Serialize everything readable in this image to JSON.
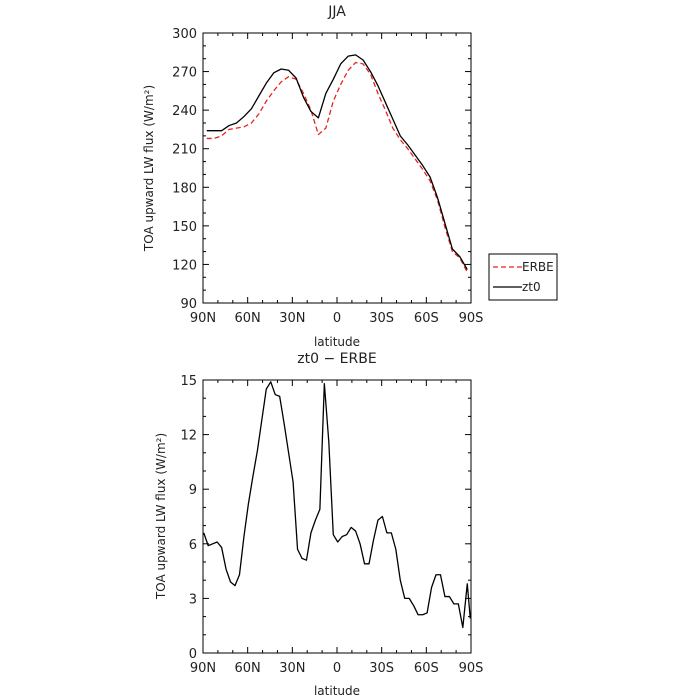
{
  "colors": {
    "erbe": "#e8231e",
    "zt0": "#000000"
  },
  "chart_data": [
    {
      "type": "line",
      "title": "JJA",
      "xlabel": "latitude",
      "ylabel": "TOA upward LW flux (W/m²)",
      "xlim": [
        -90,
        90
      ],
      "ylim": [
        90,
        300
      ],
      "xticks": [
        -90,
        -60,
        -30,
        0,
        30,
        60,
        90
      ],
      "xtick_labels": [
        "90N",
        "60N",
        "30N",
        "0",
        "30S",
        "60S",
        "90S"
      ],
      "yticks": [
        90,
        120,
        150,
        180,
        210,
        240,
        270,
        300
      ],
      "grid": false,
      "legend": "right",
      "series": [
        {
          "name": "ERBE",
          "color": "erbe",
          "dash": "dashed",
          "x": [
            -87.5,
            -82.5,
            -77.5,
            -72.5,
            -67.5,
            -62.5,
            -57.5,
            -52.5,
            -47.5,
            -42.5,
            -37.5,
            -32.5,
            -27.5,
            -22.5,
            -17.5,
            -12.5,
            -7.5,
            -2.5,
            2.5,
            7.5,
            12.5,
            17.5,
            22.5,
            27.5,
            32.5,
            37.5,
            42.5,
            47.5,
            52.5,
            57.5,
            62.5,
            67.5,
            72.5,
            77.5,
            82.5,
            87.5
          ],
          "values": [
            218,
            218,
            220,
            225,
            226,
            227,
            230,
            237,
            247,
            255,
            262,
            266,
            264,
            253,
            240,
            221,
            226,
            247,
            260,
            271,
            277,
            276,
            268,
            253,
            240,
            226,
            217,
            210,
            202,
            194,
            185,
            170,
            149,
            130,
            125,
            114
          ]
        },
        {
          "name": "zt0",
          "color": "zt0",
          "dash": "solid",
          "x": [
            -87.5,
            -82.5,
            -77.5,
            -72.5,
            -67.5,
            -62.5,
            -57.5,
            -52.5,
            -47.5,
            -42.5,
            -37.5,
            -32.5,
            -27.5,
            -22.5,
            -17.5,
            -12.5,
            -7.5,
            -2.5,
            2.5,
            7.5,
            12.5,
            17.5,
            22.5,
            27.5,
            32.5,
            37.5,
            42.5,
            47.5,
            52.5,
            57.5,
            62.5,
            67.5,
            72.5,
            77.5,
            82.5,
            87.5
          ],
          "values": [
            224,
            224,
            224,
            228,
            230,
            235,
            241,
            251,
            261,
            269,
            272,
            271,
            265,
            250,
            239,
            234,
            253,
            264,
            276,
            282,
            283,
            279,
            270,
            259,
            246,
            233,
            220,
            213,
            205,
            197,
            188,
            172,
            152,
            132,
            126,
            116
          ]
        }
      ]
    },
    {
      "type": "line",
      "title": "zt0 − ERBE",
      "xlabel": "latitude",
      "ylabel": "TOA upward LW flux (W/m²)",
      "xlim": [
        -90,
        90
      ],
      "ylim": [
        0,
        15
      ],
      "xticks": [
        -90,
        -60,
        -30,
        0,
        30,
        60,
        90
      ],
      "xtick_labels": [
        "90N",
        "60N",
        "30N",
        "0",
        "30S",
        "60S",
        "90S"
      ],
      "yticks": [
        0,
        3,
        6,
        9,
        12,
        15
      ],
      "grid": false,
      "series": [
        {
          "color": "zt0",
          "dash": "solid",
          "x": [
            -89.5,
            -86.5,
            -83.5,
            -80.5,
            -77.5,
            -74.5,
            -71.5,
            -68.5,
            -65.5,
            -62.5,
            -59.5,
            -56.5,
            -53.5,
            -50.5,
            -47.5,
            -44.5,
            -41.5,
            -38.5,
            -35.5,
            -32.5,
            -29.5,
            -26.5,
            -23.5,
            -20.5,
            -17.5,
            -14.5,
            -11.5,
            -8.5,
            -5.5,
            -2.5,
            0.5,
            3.5,
            6.5,
            9.5,
            12.5,
            15.5,
            18.5,
            21.5,
            24.5,
            27.5,
            30.5,
            33.5,
            36.5,
            39.5,
            42.5,
            45.5,
            48.5,
            51.5,
            54.5,
            57.5,
            60.5,
            63.5,
            66.5,
            69.5,
            72.5,
            75.5,
            78.5,
            81.5,
            84.5,
            87.5,
            89.5
          ],
          "values": [
            6.6,
            5.9,
            6.0,
            6.1,
            5.8,
            4.6,
            3.9,
            3.7,
            4.3,
            6.4,
            8.2,
            9.7,
            11.1,
            12.8,
            14.5,
            14.9,
            14.2,
            14.1,
            12.6,
            11.0,
            9.4,
            5.7,
            5.2,
            5.1,
            6.6,
            7.3,
            7.9,
            14.8,
            11.6,
            6.5,
            6.1,
            6.4,
            6.5,
            6.9,
            6.7,
            6.0,
            4.9,
            4.9,
            6.2,
            7.3,
            7.5,
            6.6,
            6.6,
            5.7,
            4.0,
            3.0,
            3.0,
            2.6,
            2.1,
            2.1,
            2.2,
            3.6,
            4.3,
            4.3,
            3.1,
            3.1,
            2.7,
            2.7,
            1.4,
            3.8,
            1.9
          ]
        }
      ]
    }
  ]
}
